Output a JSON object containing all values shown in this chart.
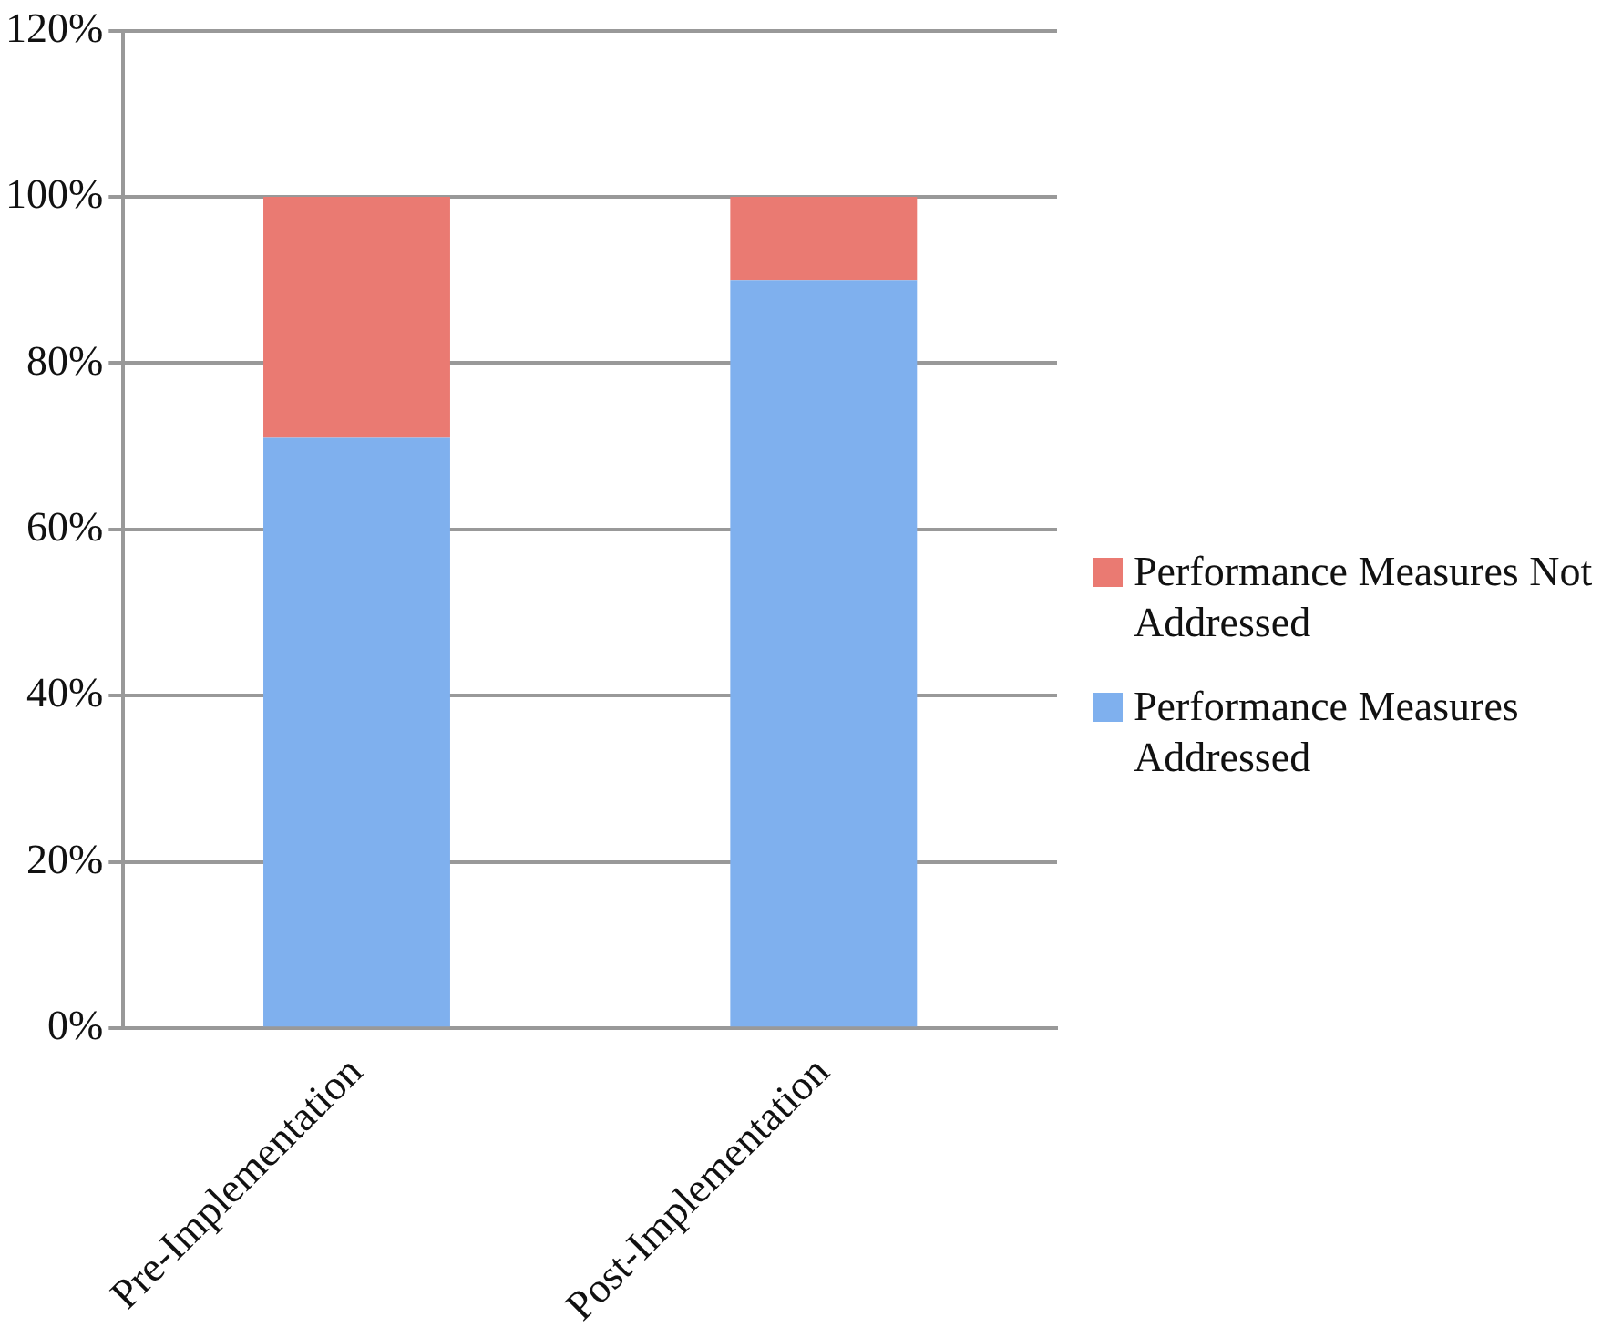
{
  "chart_data": {
    "type": "bar",
    "stacked": true,
    "categories": [
      "Pre-Implementation",
      "Post-Implementation"
    ],
    "series": [
      {
        "name": "Performance Measures Addressed",
        "color": "#7fb0ee",
        "values": [
          71,
          90
        ]
      },
      {
        "name": "Performance Measures Not Addressed",
        "color": "#ea7a72",
        "values": [
          29,
          10
        ]
      }
    ],
    "ylim": [
      0,
      120
    ],
    "yticks": [
      {
        "value": 0,
        "label": "0%"
      },
      {
        "value": 20,
        "label": "20%"
      },
      {
        "value": 40,
        "label": "40%"
      },
      {
        "value": 60,
        "label": "60%"
      },
      {
        "value": 80,
        "label": "80%"
      },
      {
        "value": 100,
        "label": "100%"
      },
      {
        "value": 120,
        "label": "120%"
      }
    ],
    "grid": "y",
    "legend": "right"
  }
}
